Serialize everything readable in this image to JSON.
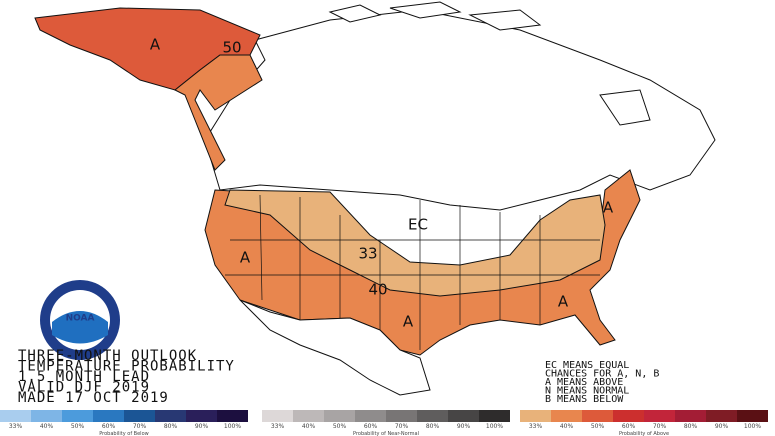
{
  "title_lines": [
    "THREE-MONTH OUTLOOK",
    "TEMPERATURE PROBABILITY",
    "1.5 MONTH LEAD",
    "VALID DJF 2019",
    "MADE 17 OCT 2019"
  ],
  "notes": [
    "EC MEANS EQUAL",
    "CHANCES FOR A, N, B",
    "A MEANS ABOVE",
    "N MEANS NORMAL",
    "B MEANS BELOW"
  ],
  "logo": "NOAA",
  "map_labels": [
    "A",
    "50",
    "EC",
    "33",
    "40",
    "A",
    "A",
    "A",
    "A"
  ],
  "legend": [
    {
      "caption": "Probability of Below",
      "labels": [
        "33%",
        "40%",
        "50%",
        "60%",
        "70%",
        "80%",
        "90%",
        "100%"
      ],
      "colors": [
        "#a9cdee",
        "#7eb5e6",
        "#4c9bdc",
        "#2a78c0",
        "#1b5595",
        "#283873",
        "#2a1f5a",
        "#1c0f3f"
      ]
    },
    {
      "caption": "Probability of Near-Normal",
      "labels": [
        "33%",
        "40%",
        "50%",
        "60%",
        "70%",
        "80%",
        "90%",
        "100%"
      ],
      "colors": [
        "#ddd8d8",
        "#bdb8b8",
        "#a8a4a4",
        "#8f8c8c",
        "#787575",
        "#5f5d5d",
        "#474545",
        "#2e2c2c"
      ]
    },
    {
      "caption": "Probability of Above",
      "labels": [
        "33%",
        "40%",
        "50%",
        "60%",
        "70%",
        "80%",
        "90%",
        "100%"
      ],
      "colors": [
        "#e8b27a",
        "#e8864e",
        "#dd5a3a",
        "#cc2f2e",
        "#c2253a",
        "#a31d35",
        "#7f1c25",
        "#5a1014"
      ]
    }
  ]
}
